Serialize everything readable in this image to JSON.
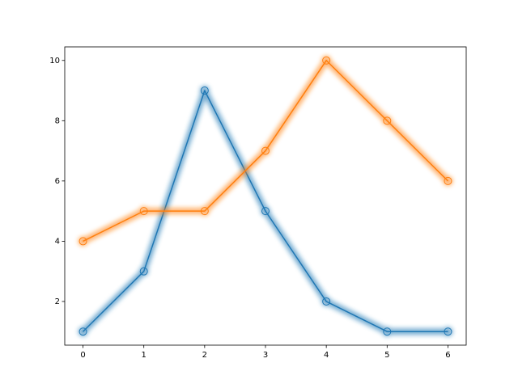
{
  "chart_data": {
    "type": "line",
    "x": [
      0,
      1,
      2,
      3,
      4,
      5,
      6
    ],
    "series": [
      {
        "color": "#1f77b4",
        "values": [
          1,
          3,
          9,
          5,
          2,
          1,
          1
        ]
      },
      {
        "color": "#ff7f0e",
        "values": [
          4,
          5,
          5,
          7,
          10,
          8,
          6
        ]
      }
    ],
    "xlim": [
      -0.3,
      6.3
    ],
    "xticks": [
      0,
      1,
      2,
      3,
      4,
      5,
      6
    ],
    "ylim": [
      0.55,
      10.45
    ],
    "yticks": [
      2,
      4,
      6,
      8,
      10
    ],
    "grid": false,
    "markers": "open-circle",
    "glow": true
  }
}
